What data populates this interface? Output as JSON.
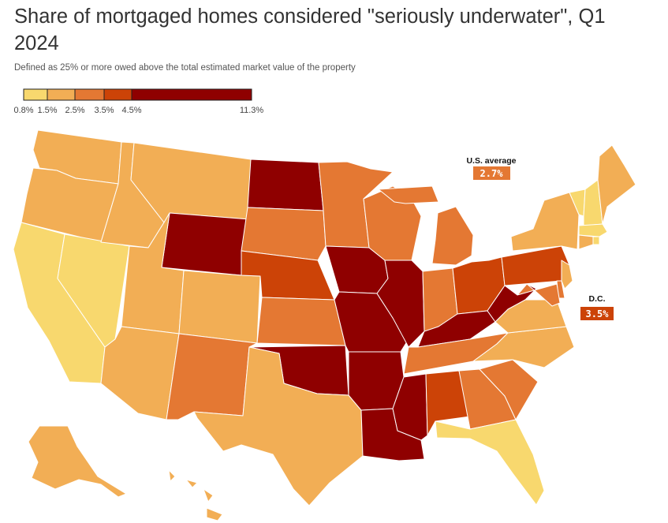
{
  "title": "Share of mortgaged homes considered \"seriously underwater\", Q1 2024",
  "subtitle": "Defined as 25% or more owed above the total estimated market value of the property",
  "legend": {
    "ticks": [
      "0.8%",
      "1.5%",
      "2.5%",
      "3.5%",
      "4.5%",
      "11.3%"
    ],
    "bins": [
      {
        "range": [
          0.8,
          1.5
        ],
        "color": "#f8d86e"
      },
      {
        "range": [
          1.5,
          2.5
        ],
        "color": "#f2ae55"
      },
      {
        "range": [
          2.5,
          3.5
        ],
        "color": "#e47833"
      },
      {
        "range": [
          3.5,
          4.5
        ],
        "color": "#cc4307"
      },
      {
        "range": [
          4.5,
          11.3
        ],
        "color": "#8f0000"
      }
    ]
  },
  "callouts": {
    "us_average": {
      "label": "U.S. average",
      "value": "2.7%",
      "color": "#e47833"
    },
    "dc": {
      "label": "D.C.",
      "value": "3.5%",
      "color": "#cc4307"
    }
  },
  "map_data": {
    "bins_by_state": {
      "WA": 2,
      "OR": 2,
      "CA": 1,
      "NV": 1,
      "ID": 2,
      "MT": 2,
      "WY": 5,
      "UT": 2,
      "AZ": 2,
      "CO": 2,
      "NM": 3,
      "ND": 5,
      "SD": 3,
      "NE": 4,
      "KS": 3,
      "OK": 5,
      "TX": 2,
      "MN": 3,
      "IA": 5,
      "MO": 5,
      "AR": 5,
      "LA": 5,
      "WI": 3,
      "IL": 5,
      "MS": 5,
      "MI": 3,
      "IN": 3,
      "OH": 4,
      "KY": 5,
      "TN": 3,
      "AL": 4,
      "GA": 3,
      "FL": 1,
      "SC": 3,
      "NC": 2,
      "VA": 2,
      "WV": 5,
      "PA": 4,
      "NY": 2,
      "VT": 1,
      "NH": 1,
      "ME": 2,
      "MA": 1,
      "RI": 1,
      "CT": 2,
      "NJ": 2,
      "DE": 3,
      "MD": 3,
      "AK": 2,
      "HI": 2
    }
  }
}
